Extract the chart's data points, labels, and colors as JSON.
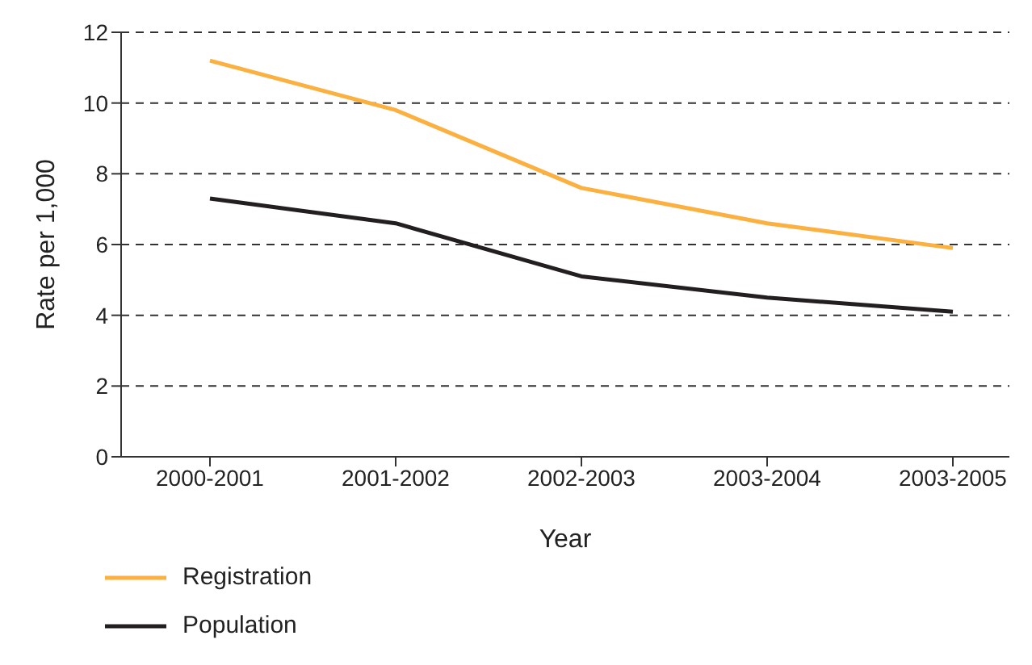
{
  "chart_data": {
    "type": "line",
    "xlabel": "Year",
    "ylabel": "Rate per 1,000",
    "categories": [
      "2000-2001",
      "2001-2002",
      "2002-2003",
      "2003-2004",
      "2003-2005"
    ],
    "series": [
      {
        "name": "Registration",
        "color": "#fbb040",
        "values": [
          11.2,
          9.8,
          7.6,
          6.6,
          5.9
        ]
      },
      {
        "name": "Population",
        "color": "#231f20",
        "values": [
          7.3,
          6.6,
          5.1,
          4.5,
          4.1
        ]
      }
    ],
    "ylim": [
      0,
      12
    ],
    "yticks": [
      0,
      2,
      4,
      6,
      8,
      10,
      12
    ],
    "grid": "y",
    "legend": "bottom left",
    "marker": "none",
    "line_style": "solid"
  }
}
